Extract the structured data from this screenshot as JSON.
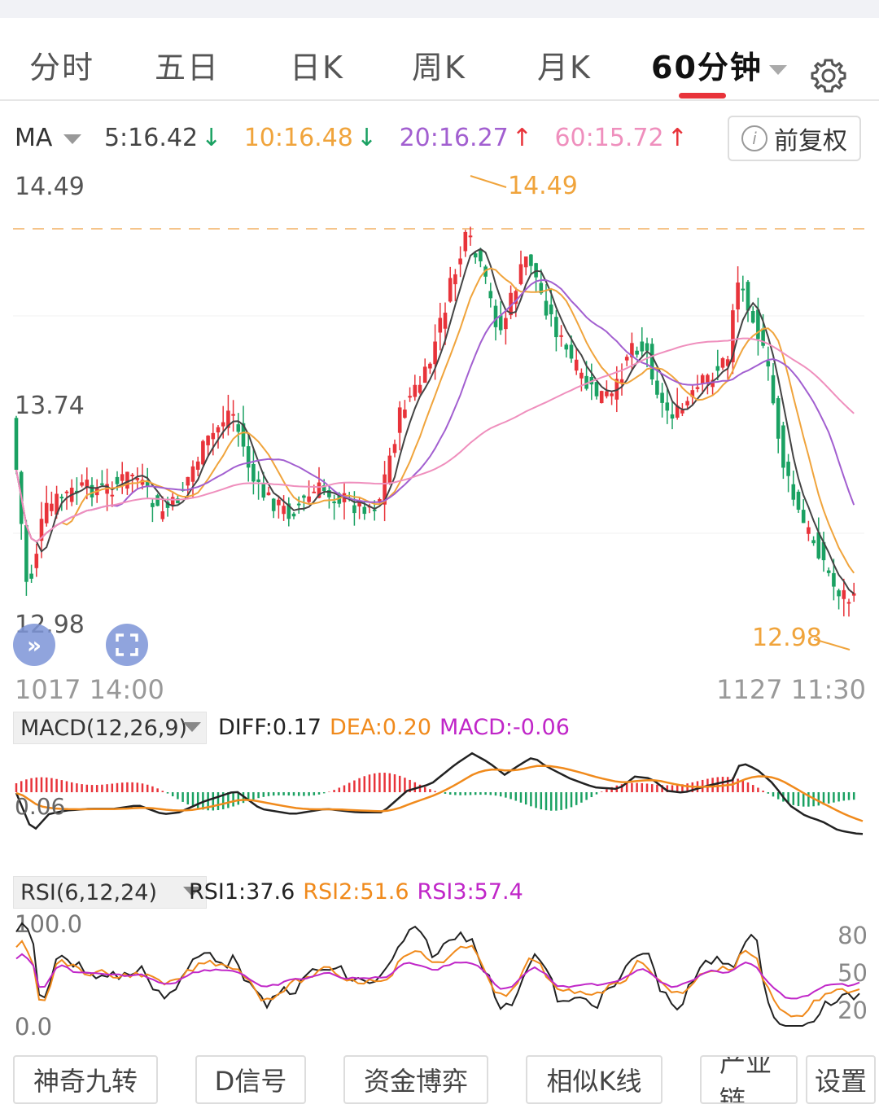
{
  "tabs": [
    {
      "label": "分时",
      "active": false
    },
    {
      "label": "五日",
      "active": false
    },
    {
      "label": "日K",
      "active": false
    },
    {
      "label": "周K",
      "active": false
    },
    {
      "label": "月K",
      "active": false
    },
    {
      "label": "60分钟",
      "active": true
    }
  ],
  "settings_icon": "gear-icon",
  "ma": {
    "selector": "MA",
    "items": [
      {
        "text": "5:16.42",
        "arrow": "↓",
        "color": "#444444",
        "arrow_color": "#1aa162"
      },
      {
        "text": "10:16.48",
        "arrow": "↓",
        "color": "#f0a43c",
        "arrow_color": "#1aa162"
      },
      {
        "text": "20:16.27",
        "arrow": "↑",
        "color": "#a25fd0",
        "arrow_color": "#e8333a"
      },
      {
        "text": "60:15.72",
        "arrow": "↑",
        "color": "#ef8fbd",
        "arrow_color": "#e8333a"
      }
    ]
  },
  "adjust_button": "前复权",
  "price_axis": {
    "high": "14.49",
    "mid": "13.74",
    "low": "12.98"
  },
  "annotations": {
    "high": "14.49",
    "low": "12.98"
  },
  "dates": {
    "start": "1017 14:00",
    "end": "1127 11:30"
  },
  "macd": {
    "selector": "MACD(12,26,9)",
    "diff": "DIFF:0.17",
    "dea": "DEA:0.20",
    "macd": "MACD:-0.06",
    "axis_label": "0.06"
  },
  "rsi": {
    "selector": "RSI(6,12,24)",
    "rsi1": "RSI1:37.6",
    "rsi2": "RSI2:51.6",
    "rsi3": "RSI3:57.4",
    "top": "100.0",
    "bottom": "0.0",
    "levels": [
      "80",
      "50",
      "20"
    ]
  },
  "bottom_buttons": [
    "神奇九转",
    "D信号",
    "资金博弈",
    "相似K线",
    "产业链",
    "设置"
  ],
  "colors": {
    "up": "#e8333a",
    "down": "#1aa162",
    "ma5": "#444444",
    "ma10": "#f0a43c",
    "ma20": "#a25fd0",
    "ma60": "#ef8fbd"
  }
}
